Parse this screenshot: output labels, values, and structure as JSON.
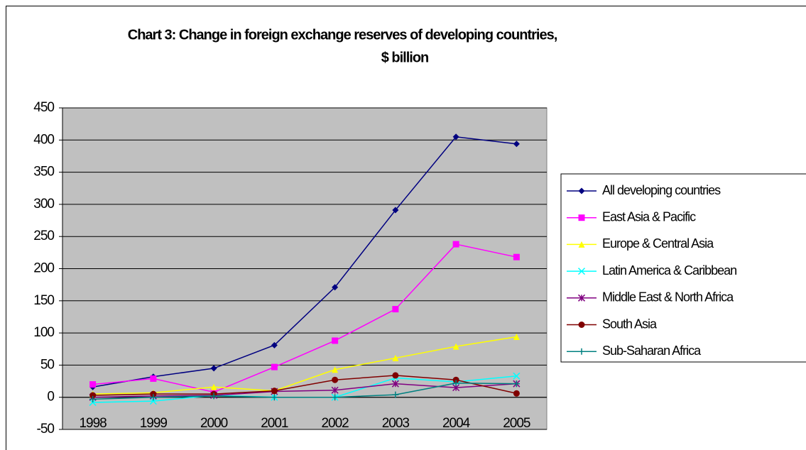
{
  "chart_data": {
    "type": "line",
    "title": [
      "Chart 3: Change in foreign exchange reserves of developing countries,",
      "$ billion"
    ],
    "categories": [
      "1998",
      "1999",
      "2000",
      "2001",
      "2002",
      "2003",
      "2004",
      "2005"
    ],
    "ylim": [
      -50,
      450
    ],
    "yticks": [
      -50,
      0,
      50,
      100,
      150,
      200,
      250,
      300,
      350,
      400,
      450
    ],
    "grid": true,
    "series": [
      {
        "name": "All developing countries",
        "color": "#000080",
        "marker": "diamond",
        "values": [
          16,
          32,
          45,
          81,
          171,
          291,
          405,
          394
        ]
      },
      {
        "name": "East Asia & Pacific",
        "color": "#ff00ff",
        "marker": "square",
        "values": [
          20,
          29,
          8,
          47,
          88,
          137,
          238,
          218
        ]
      },
      {
        "name": "Europe & Central Asia",
        "color": "#ffff00",
        "marker": "triangle",
        "values": [
          5,
          7,
          16,
          10,
          43,
          61,
          79,
          94
        ]
      },
      {
        "name": "Latin America & Caribbean",
        "color": "#00ffff",
        "marker": "x",
        "values": [
          -8,
          -6,
          3,
          0,
          0,
          30,
          24,
          33
        ]
      },
      {
        "name": "Middle East & North Africa",
        "color": "#800080",
        "marker": "star",
        "values": [
          0,
          2,
          3,
          9,
          11,
          21,
          15,
          21
        ]
      },
      {
        "name": "South Asia",
        "color": "#800000",
        "marker": "circle",
        "values": [
          3,
          5,
          5,
          10,
          27,
          34,
          27,
          6
        ]
      },
      {
        "name": "Sub-Saharan Africa",
        "color": "#008080",
        "marker": "plus",
        "values": [
          -3,
          0,
          2,
          0,
          0,
          4,
          22,
          21
        ]
      }
    ]
  }
}
